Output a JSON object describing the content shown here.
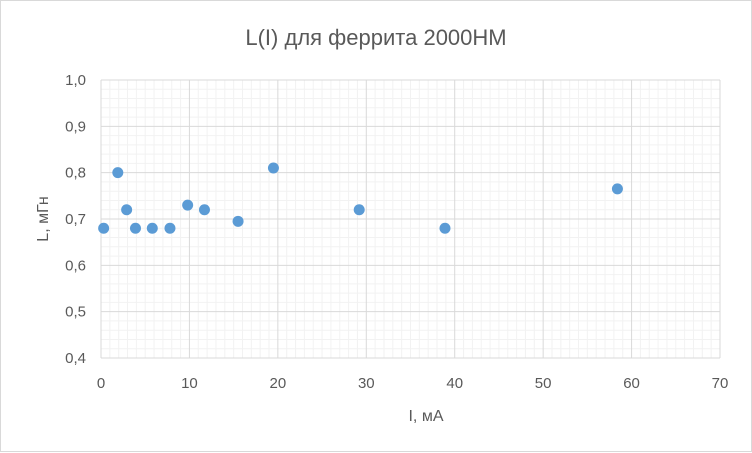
{
  "chart_data": {
    "type": "scatter",
    "title": "L(I) для феррита 2000НМ",
    "xlabel": "I, мА",
    "ylabel": "L, мГн",
    "xlim": [
      0,
      70
    ],
    "ylim": [
      0.4,
      1.0
    ],
    "x_ticks": [
      "0",
      "10",
      "20",
      "30",
      "40",
      "50",
      "60",
      "70"
    ],
    "y_ticks": [
      "0,4",
      "0,5",
      "0,6",
      "0,7",
      "0,8",
      "0,9",
      "1,0"
    ],
    "grid": true,
    "minor_grid": true,
    "marker_color": "#5b9bd5",
    "points": [
      {
        "x": 0.3,
        "y": 0.68
      },
      {
        "x": 1.9,
        "y": 0.8
      },
      {
        "x": 2.9,
        "y": 0.72
      },
      {
        "x": 3.9,
        "y": 0.68
      },
      {
        "x": 5.8,
        "y": 0.68
      },
      {
        "x": 7.8,
        "y": 0.68
      },
      {
        "x": 9.8,
        "y": 0.73
      },
      {
        "x": 11.7,
        "y": 0.72
      },
      {
        "x": 15.5,
        "y": 0.695
      },
      {
        "x": 19.5,
        "y": 0.81
      },
      {
        "x": 29.2,
        "y": 0.72
      },
      {
        "x": 38.9,
        "y": 0.68
      },
      {
        "x": 58.4,
        "y": 0.765
      }
    ]
  }
}
